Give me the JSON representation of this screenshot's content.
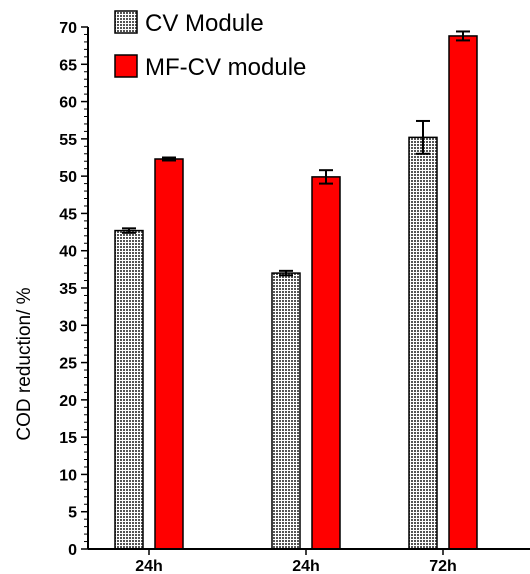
{
  "chart_data": {
    "type": "bar",
    "categories": [
      "24h",
      "24h",
      "72h"
    ],
    "series": [
      {
        "name": "CV Module",
        "values": [
          42.7,
          37.0,
          55.2
        ],
        "errors": [
          0.3,
          0.3,
          2.2
        ],
        "color": "#b0b0b0",
        "pattern": "crosshatch"
      },
      {
        "name": "MF-CV module",
        "values": [
          52.3,
          49.9,
          68.8
        ],
        "errors": [
          0.2,
          0.9,
          0.6
        ],
        "color": "#ff0000",
        "pattern": "solid"
      }
    ],
    "ylabel": "COD reduction/ %",
    "xlabel": "",
    "ylim": [
      0,
      70
    ],
    "yticks": [
      0,
      5,
      10,
      15,
      20,
      25,
      30,
      35,
      40,
      45,
      50,
      55,
      60,
      65,
      70
    ],
    "legend_position": "top-left",
    "grid": false
  }
}
